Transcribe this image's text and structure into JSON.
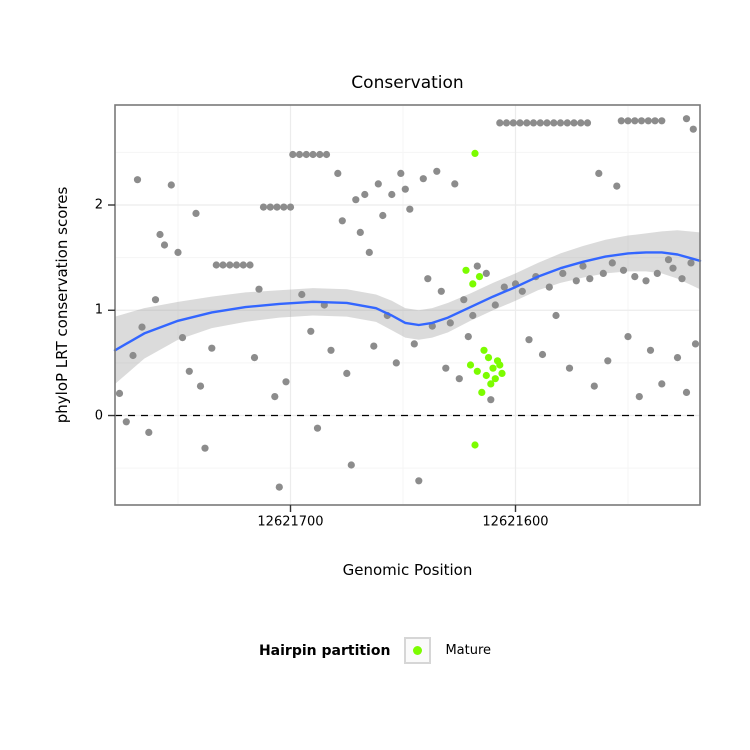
{
  "chart_data": {
    "type": "scatter",
    "title": "Conservation",
    "x_axis": {
      "label": "Genomic Position",
      "domain": [
        12621778,
        12621518
      ],
      "reversed": true,
      "ticks": [
        {
          "value": 12621700,
          "label": "12621700"
        },
        {
          "value": 12621600,
          "label": "12621600"
        }
      ],
      "minor": [
        12621750,
        12621650,
        12621550
      ]
    },
    "y_axis": {
      "label": "phyloP LRT conservation scores",
      "domain": [
        -0.85,
        2.95
      ],
      "ticks": [
        {
          "value": 0,
          "label": "0"
        },
        {
          "value": 1,
          "label": "1"
        },
        {
          "value": 2,
          "label": "2"
        }
      ],
      "minor": [
        -0.5,
        0.5,
        1.5,
        2.5
      ]
    },
    "reference_line": {
      "y": 0,
      "style": "dashed",
      "color": "#000000"
    },
    "smooth": {
      "color": "#3366FF",
      "band_color": "#999999",
      "band_opacity": 0.35,
      "x": [
        12621778,
        12621765,
        12621750,
        12621735,
        12621720,
        12621705,
        12621690,
        12621675,
        12621662,
        12621655,
        12621649,
        12621643,
        12621637,
        12621630,
        12621620,
        12621610,
        12621600,
        12621590,
        12621580,
        12621570,
        12621560,
        12621550,
        12621542,
        12621535,
        12621528,
        12621518
      ],
      "y": [
        0.62,
        0.78,
        0.9,
        0.98,
        1.03,
        1.06,
        1.08,
        1.07,
        1.02,
        0.95,
        0.88,
        0.86,
        0.88,
        0.93,
        1.03,
        1.13,
        1.22,
        1.32,
        1.4,
        1.46,
        1.51,
        1.54,
        1.55,
        1.55,
        1.53,
        1.47
      ],
      "upper": [
        0.94,
        1.02,
        1.08,
        1.13,
        1.17,
        1.19,
        1.21,
        1.2,
        1.15,
        1.09,
        1.02,
        1.0,
        1.02,
        1.07,
        1.16,
        1.26,
        1.35,
        1.45,
        1.54,
        1.61,
        1.67,
        1.71,
        1.73,
        1.75,
        1.76,
        1.74
      ],
      "lower": [
        0.3,
        0.54,
        0.72,
        0.83,
        0.89,
        0.93,
        0.95,
        0.94,
        0.89,
        0.81,
        0.74,
        0.72,
        0.74,
        0.79,
        0.9,
        1.0,
        1.09,
        1.19,
        1.26,
        1.31,
        1.35,
        1.37,
        1.37,
        1.35,
        1.3,
        1.2
      ]
    },
    "series": [
      {
        "name": "",
        "color": "#8C8C8C",
        "points": [
          [
            12621776,
            0.21
          ],
          [
            12621773,
            -0.06
          ],
          [
            12621770,
            0.57
          ],
          [
            12621768,
            2.24
          ],
          [
            12621766,
            0.84
          ],
          [
            12621763,
            -0.16
          ],
          [
            12621760,
            1.1
          ],
          [
            12621758,
            1.72
          ],
          [
            12621756,
            1.62
          ],
          [
            12621753,
            2.19
          ],
          [
            12621750,
            1.55
          ],
          [
            12621748,
            0.74
          ],
          [
            12621745,
            0.42
          ],
          [
            12621742,
            1.92
          ],
          [
            12621740,
            0.28
          ],
          [
            12621738,
            -0.31
          ],
          [
            12621735,
            0.64
          ],
          [
            12621733,
            1.43
          ],
          [
            12621730,
            1.43
          ],
          [
            12621727,
            1.43
          ],
          [
            12621724,
            1.43
          ],
          [
            12621721,
            1.43
          ],
          [
            12621718,
            1.43
          ],
          [
            12621716,
            0.55
          ],
          [
            12621714,
            1.2
          ],
          [
            12621712,
            1.98
          ],
          [
            12621709,
            1.98
          ],
          [
            12621706,
            1.98
          ],
          [
            12621703,
            1.98
          ],
          [
            12621700,
            1.98
          ],
          [
            12621707,
            0.18
          ],
          [
            12621705,
            -0.68
          ],
          [
            12621702,
            0.32
          ],
          [
            12621699,
            2.48
          ],
          [
            12621696,
            2.48
          ],
          [
            12621693,
            2.48
          ],
          [
            12621690,
            2.48
          ],
          [
            12621687,
            2.48
          ],
          [
            12621684,
            2.48
          ],
          [
            12621695,
            1.15
          ],
          [
            12621691,
            0.8
          ],
          [
            12621688,
            -0.12
          ],
          [
            12621685,
            1.05
          ],
          [
            12621682,
            0.62
          ],
          [
            12621679,
            2.3
          ],
          [
            12621677,
            1.85
          ],
          [
            12621675,
            0.4
          ],
          [
            12621673,
            -0.47
          ],
          [
            12621671,
            2.05
          ],
          [
            12621669,
            1.74
          ],
          [
            12621667,
            2.1
          ],
          [
            12621665,
            1.55
          ],
          [
            12621663,
            0.66
          ],
          [
            12621661,
            2.2
          ],
          [
            12621659,
            1.9
          ],
          [
            12621657,
            0.95
          ],
          [
            12621655,
            2.1
          ],
          [
            12621653,
            0.5
          ],
          [
            12621651,
            2.3
          ],
          [
            12621649,
            2.15
          ],
          [
            12621647,
            1.96
          ],
          [
            12621645,
            0.68
          ],
          [
            12621643,
            -0.62
          ],
          [
            12621641,
            2.25
          ],
          [
            12621639,
            1.3
          ],
          [
            12621637,
            0.85
          ],
          [
            12621635,
            2.32
          ],
          [
            12621633,
            1.18
          ],
          [
            12621631,
            0.45
          ],
          [
            12621629,
            0.88
          ],
          [
            12621627,
            2.2
          ],
          [
            12621625,
            0.35
          ],
          [
            12621623,
            1.1
          ],
          [
            12621621,
            0.75
          ],
          [
            12621619,
            0.95
          ],
          [
            12621617,
            1.42
          ],
          [
            12621613,
            1.35
          ],
          [
            12621611,
            0.15
          ],
          [
            12621609,
            1.05
          ],
          [
            12621605,
            1.22
          ],
          [
            12621607,
            2.78
          ],
          [
            12621604,
            2.78
          ],
          [
            12621601,
            2.78
          ],
          [
            12621598,
            2.78
          ],
          [
            12621595,
            2.78
          ],
          [
            12621592,
            2.78
          ],
          [
            12621589,
            2.78
          ],
          [
            12621586,
            2.78
          ],
          [
            12621583,
            2.78
          ],
          [
            12621580,
            2.78
          ],
          [
            12621577,
            2.78
          ],
          [
            12621574,
            2.78
          ],
          [
            12621571,
            2.78
          ],
          [
            12621568,
            2.78
          ],
          [
            12621553,
            2.8
          ],
          [
            12621550,
            2.8
          ],
          [
            12621547,
            2.8
          ],
          [
            12621544,
            2.8
          ],
          [
            12621541,
            2.8
          ],
          [
            12621538,
            2.8
          ],
          [
            12621535,
            2.8
          ],
          [
            12621524,
            2.82
          ],
          [
            12621521,
            2.72
          ],
          [
            12621600,
            1.25
          ],
          [
            12621597,
            1.18
          ],
          [
            12621594,
            0.72
          ],
          [
            12621591,
            1.32
          ],
          [
            12621588,
            0.58
          ],
          [
            12621585,
            1.22
          ],
          [
            12621582,
            0.95
          ],
          [
            12621579,
            1.35
          ],
          [
            12621576,
            0.45
          ],
          [
            12621573,
            1.28
          ],
          [
            12621570,
            1.42
          ],
          [
            12621567,
            1.3
          ],
          [
            12621565,
            0.28
          ],
          [
            12621563,
            2.3
          ],
          [
            12621561,
            1.35
          ],
          [
            12621559,
            0.52
          ],
          [
            12621557,
            1.45
          ],
          [
            12621555,
            2.18
          ],
          [
            12621552,
            1.38
          ],
          [
            12621550,
            0.75
          ],
          [
            12621547,
            1.32
          ],
          [
            12621545,
            0.18
          ],
          [
            12621542,
            1.28
          ],
          [
            12621540,
            0.62
          ],
          [
            12621537,
            1.35
          ],
          [
            12621535,
            0.3
          ],
          [
            12621532,
            1.48
          ],
          [
            12621530,
            1.4
          ],
          [
            12621528,
            0.55
          ],
          [
            12621526,
            1.3
          ],
          [
            12621524,
            0.22
          ],
          [
            12621522,
            1.45
          ],
          [
            12621520,
            0.68
          ]
        ]
      },
      {
        "name": "Mature",
        "color": "#7CFC00",
        "points": [
          [
            12621618,
            2.49
          ],
          [
            12621622,
            1.38
          ],
          [
            12621619,
            1.25
          ],
          [
            12621616,
            1.32
          ],
          [
            12621614,
            0.62
          ],
          [
            12621612,
            0.55
          ],
          [
            12621620,
            0.48
          ],
          [
            12621617,
            0.42
          ],
          [
            12621613,
            0.38
          ],
          [
            12621610,
            0.45
          ],
          [
            12621608,
            0.52
          ],
          [
            12621606,
            0.4
          ],
          [
            12621611,
            0.3
          ],
          [
            12621615,
            0.22
          ],
          [
            12621609,
            0.35
          ],
          [
            12621607,
            0.48
          ],
          [
            12621618,
            -0.28
          ]
        ]
      }
    ],
    "legend": {
      "title": "Hairpin partition",
      "position": "bottom",
      "items": [
        {
          "label": "Mature",
          "color": "#7CFC00"
        }
      ]
    }
  }
}
